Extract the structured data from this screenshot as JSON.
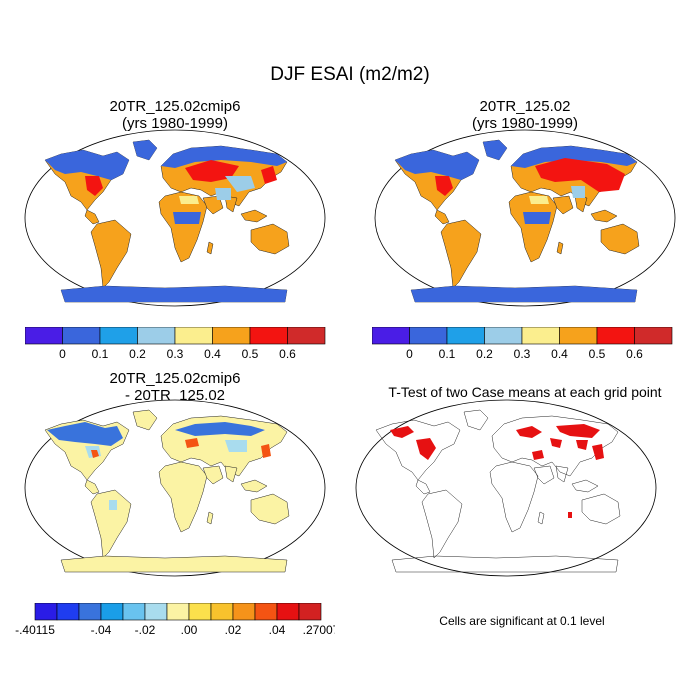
{
  "title": "DJF ESAI (m2/m2)",
  "panels": {
    "a": {
      "line1": "20TR_125.02cmip6",
      "line2": "(yrs 1980-1999)"
    },
    "b": {
      "line1": "20TR_125.02",
      "line2": "(yrs 1980-1999)"
    },
    "c": {
      "line1": "20TR_125.02cmip6",
      "line2": "- 20TR_125.02"
    },
    "d": {
      "line1": "T-Test of two Case means at each grid point"
    }
  },
  "significance_note": "Cells are significant at 0.1 level",
  "colorbar_abs": {
    "colors": [
      "#4a1de6",
      "#3a66dc",
      "#1fa0e8",
      "#9ccde8",
      "#fbee8e",
      "#f6a21c",
      "#f31411",
      "#d02a2a"
    ],
    "labels": [
      "0",
      "0.1",
      "0.2",
      "0.3",
      "0.4",
      "0.5",
      "0.6"
    ]
  },
  "colorbar_diff": {
    "colors": [
      "#2a1ce6",
      "#1f3df0",
      "#3973dc",
      "#1a9ee8",
      "#69c3ef",
      "#a9dcee",
      "#fbf3a4",
      "#fbe04c",
      "#f8c22d",
      "#f5931a",
      "#f45413",
      "#e61112",
      "#d22121"
    ],
    "labels": [
      "-.40115",
      "-.04",
      "-.02",
      ".00",
      ".02",
      ".04",
      ".27007"
    ]
  }
}
